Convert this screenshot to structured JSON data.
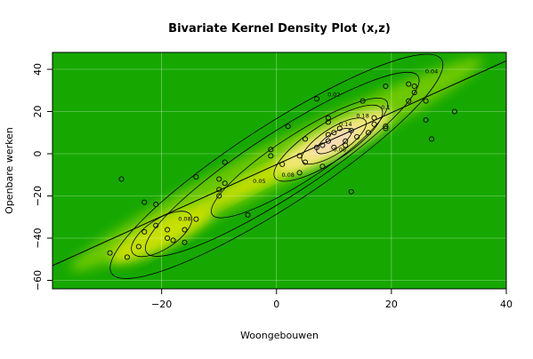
{
  "chart_data": {
    "type": "heatmap",
    "subtype": "bivariate-kernel-density-with-contours-and-scatter",
    "title": "Bivariate Kernel Density Plot (x,z)",
    "xlabel": "Woongebouwen",
    "ylabel": "Openbare werken",
    "xlim": [
      -39,
      40
    ],
    "ylim": [
      -64,
      48
    ],
    "x_ticks": [
      -20,
      0,
      20,
      40
    ],
    "y_ticks": [
      -60,
      -40,
      -20,
      0,
      20,
      40
    ],
    "grid": true,
    "legend": "none",
    "colors": {
      "background_low": "#16a800",
      "ridge": "#6cc800",
      "mid": "#c6e000",
      "high": "#f2e878",
      "peak": "#f8d8c8",
      "contour": "#000000",
      "point": "#000000",
      "grid": "#ffffff"
    },
    "contour_labels": [
      {
        "text": "0.02",
        "x": 10,
        "y": 28
      },
      {
        "text": "0.04",
        "x": 27,
        "y": 39
      },
      {
        "text": "0.1",
        "x": 19,
        "y": 22
      },
      {
        "text": "0.14",
        "x": 12,
        "y": 14
      },
      {
        "text": "0.18",
        "x": 15,
        "y": 18
      },
      {
        "text": "0.06",
        "x": 11,
        "y": 2
      },
      {
        "text": "0.05",
        "x": -3,
        "y": -13
      },
      {
        "text": "0.08",
        "x": 2,
        "y": -10
      },
      {
        "text": "0.08",
        "x": -16,
        "y": -31
      }
    ],
    "regression_line": {
      "x1": -39,
      "y1": -53,
      "x2": 40,
      "y2": 44
    },
    "points": [
      [
        -27,
        -12
      ],
      [
        -29,
        -47
      ],
      [
        -26,
        -49
      ],
      [
        -24,
        -44
      ],
      [
        -23,
        -37
      ],
      [
        -23,
        -23
      ],
      [
        -21,
        -24
      ],
      [
        -21,
        -34
      ],
      [
        -19,
        -36
      ],
      [
        -19,
        -40
      ],
      [
        -18,
        -41
      ],
      [
        -16,
        -42
      ],
      [
        -16,
        -36
      ],
      [
        -14,
        -31
      ],
      [
        -14,
        -11
      ],
      [
        -10,
        -12
      ],
      [
        -10,
        -17
      ],
      [
        -10,
        -20
      ],
      [
        -9,
        -4
      ],
      [
        -9,
        -14
      ],
      [
        -5,
        -29
      ],
      [
        -1,
        2
      ],
      [
        -1,
        -1
      ],
      [
        1,
        -5
      ],
      [
        2,
        13
      ],
      [
        4,
        -1
      ],
      [
        4,
        -9
      ],
      [
        5,
        7
      ],
      [
        5,
        -4
      ],
      [
        7,
        3
      ],
      [
        7,
        26
      ],
      [
        8,
        4
      ],
      [
        8,
        -6
      ],
      [
        9,
        6
      ],
      [
        9,
        9
      ],
      [
        9,
        15
      ],
      [
        9,
        17
      ],
      [
        10,
        10
      ],
      [
        10,
        3
      ],
      [
        11,
        12
      ],
      [
        12,
        6
      ],
      [
        12,
        4
      ],
      [
        13,
        11
      ],
      [
        13,
        -18
      ],
      [
        14,
        8
      ],
      [
        15,
        25
      ],
      [
        16,
        10
      ],
      [
        17,
        14
      ],
      [
        17,
        17
      ],
      [
        19,
        12
      ],
      [
        19,
        32
      ],
      [
        19,
        13
      ],
      [
        23,
        33
      ],
      [
        23,
        25
      ],
      [
        24,
        32
      ],
      [
        24,
        29
      ],
      [
        26,
        25
      ],
      [
        26,
        16
      ],
      [
        27,
        7
      ],
      [
        31,
        20
      ]
    ]
  }
}
